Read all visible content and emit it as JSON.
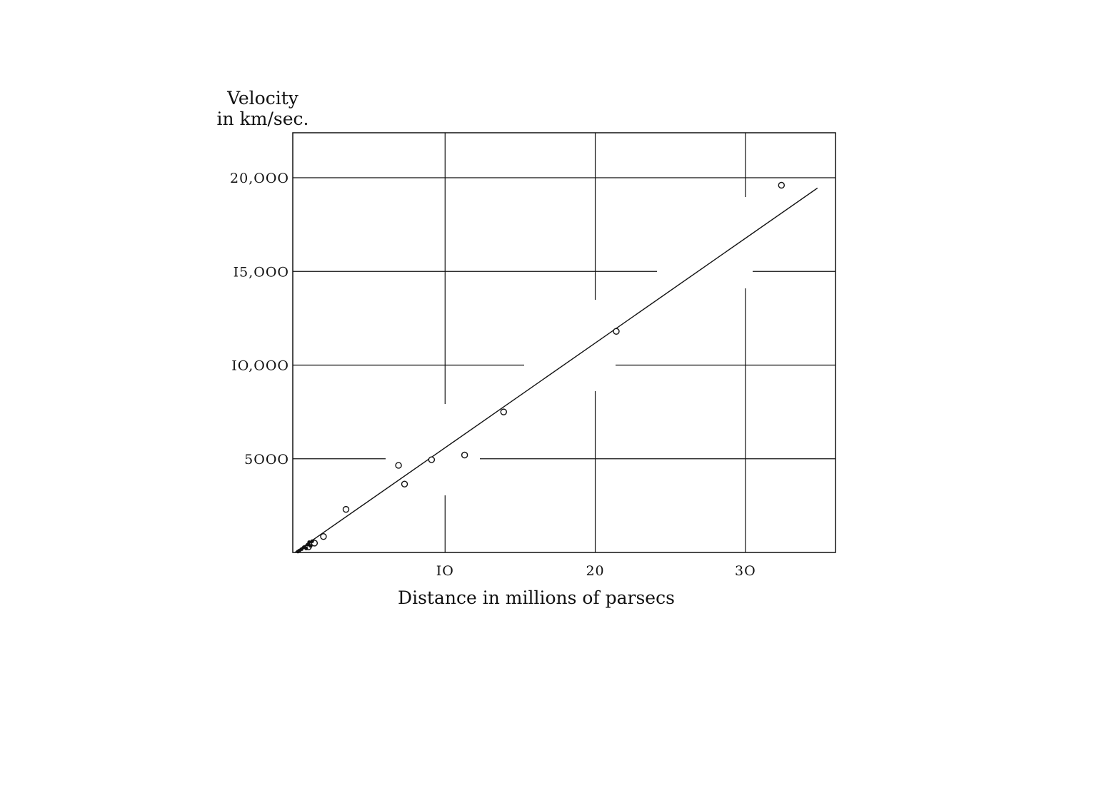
{
  "chart_data": {
    "type": "scatter",
    "ylabel": [
      "Velocity",
      "in km/sec."
    ],
    "xlabel": "Distance in millions of parsecs",
    "xlim": [
      0,
      36
    ],
    "ylim": [
      0,
      22400
    ],
    "x_ticks": [
      10,
      20,
      30
    ],
    "x_tick_labels": [
      "IO",
      "20",
      "3O"
    ],
    "y_ticks": [
      5000,
      10000,
      15000,
      20000
    ],
    "y_tick_labels": [
      "5OOO",
      "IO,OOO",
      "I5,OOO",
      "20,OOO"
    ],
    "grid": true,
    "series": [
      {
        "points": [
          {
            "x": 3.4,
            "y": 2300
          },
          {
            "x": 6.9,
            "y": 4650
          },
          {
            "x": 7.3,
            "y": 3650
          },
          {
            "x": 9.1,
            "y": 4950
          },
          {
            "x": 11.3,
            "y": 5200
          },
          {
            "x": 13.9,
            "y": 7500
          },
          {
            "x": 21.4,
            "y": 11800
          },
          {
            "x": 32.4,
            "y": 19600
          },
          {
            "x": 1.9,
            "y": 850
          },
          {
            "x": 1.3,
            "y": 500
          },
          {
            "x": 0.9,
            "y": 300
          }
        ],
        "filled_points": [
          {
            "x": 0.2,
            "y": 50
          },
          {
            "x": 0.3,
            "y": 100
          },
          {
            "x": 0.45,
            "y": 180
          },
          {
            "x": 0.6,
            "y": 280
          },
          {
            "x": 0.75,
            "y": 220
          },
          {
            "x": 0.85,
            "y": 420
          },
          {
            "x": 0.95,
            "y": 550
          },
          {
            "x": 1.05,
            "y": 350
          },
          {
            "x": 1.15,
            "y": 600
          }
        ]
      }
    ],
    "fit_line": {
      "x0": 0,
      "y0": 0,
      "x1": 34.8,
      "y1": 19450
    }
  }
}
